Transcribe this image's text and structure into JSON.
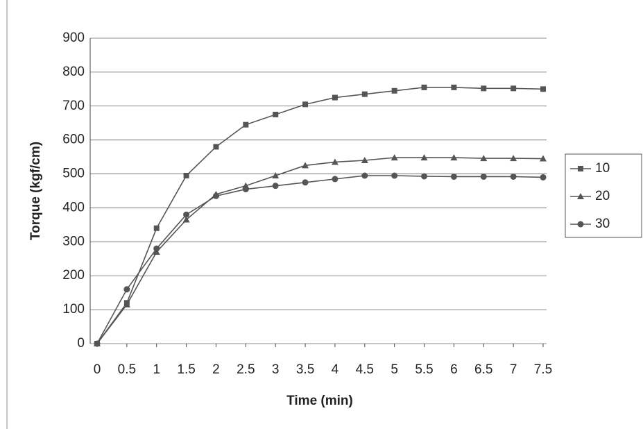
{
  "chart_data": {
    "type": "line",
    "x_label": "Time (min)",
    "y_label": "Torque (kgf/cm)",
    "x": [
      0,
      0.5,
      1,
      1.5,
      2,
      2.5,
      3,
      3.5,
      4,
      4.5,
      5,
      5.5,
      6,
      6.5,
      7,
      7.5
    ],
    "xlim": [
      0,
      7.5
    ],
    "xticks": [
      0,
      0.5,
      1,
      1.5,
      2,
      2.5,
      3,
      3.5,
      4,
      4.5,
      5,
      5.5,
      6,
      6.5,
      7,
      7.5
    ],
    "ylim": [
      0,
      900
    ],
    "yticks": [
      0,
      100,
      200,
      300,
      400,
      500,
      600,
      700,
      800,
      900
    ],
    "grid": true,
    "legend": "right",
    "series": [
      {
        "name": "10",
        "color": "#555555",
        "marker": "square",
        "values": [
          0,
          120,
          340,
          495,
          580,
          645,
          675,
          705,
          725,
          735,
          745,
          755,
          755,
          752,
          752,
          750
        ]
      },
      {
        "name": "20",
        "color": "#555555",
        "marker": "triangle",
        "values": [
          0,
          115,
          270,
          365,
          440,
          465,
          495,
          525,
          535,
          540,
          548,
          548,
          548,
          546,
          546,
          545
        ]
      },
      {
        "name": "30",
        "color": "#555555",
        "marker": "circle",
        "values": [
          0,
          160,
          280,
          380,
          435,
          455,
          465,
          475,
          485,
          495,
          495,
          493,
          492,
          492,
          492,
          490
        ]
      }
    ]
  }
}
